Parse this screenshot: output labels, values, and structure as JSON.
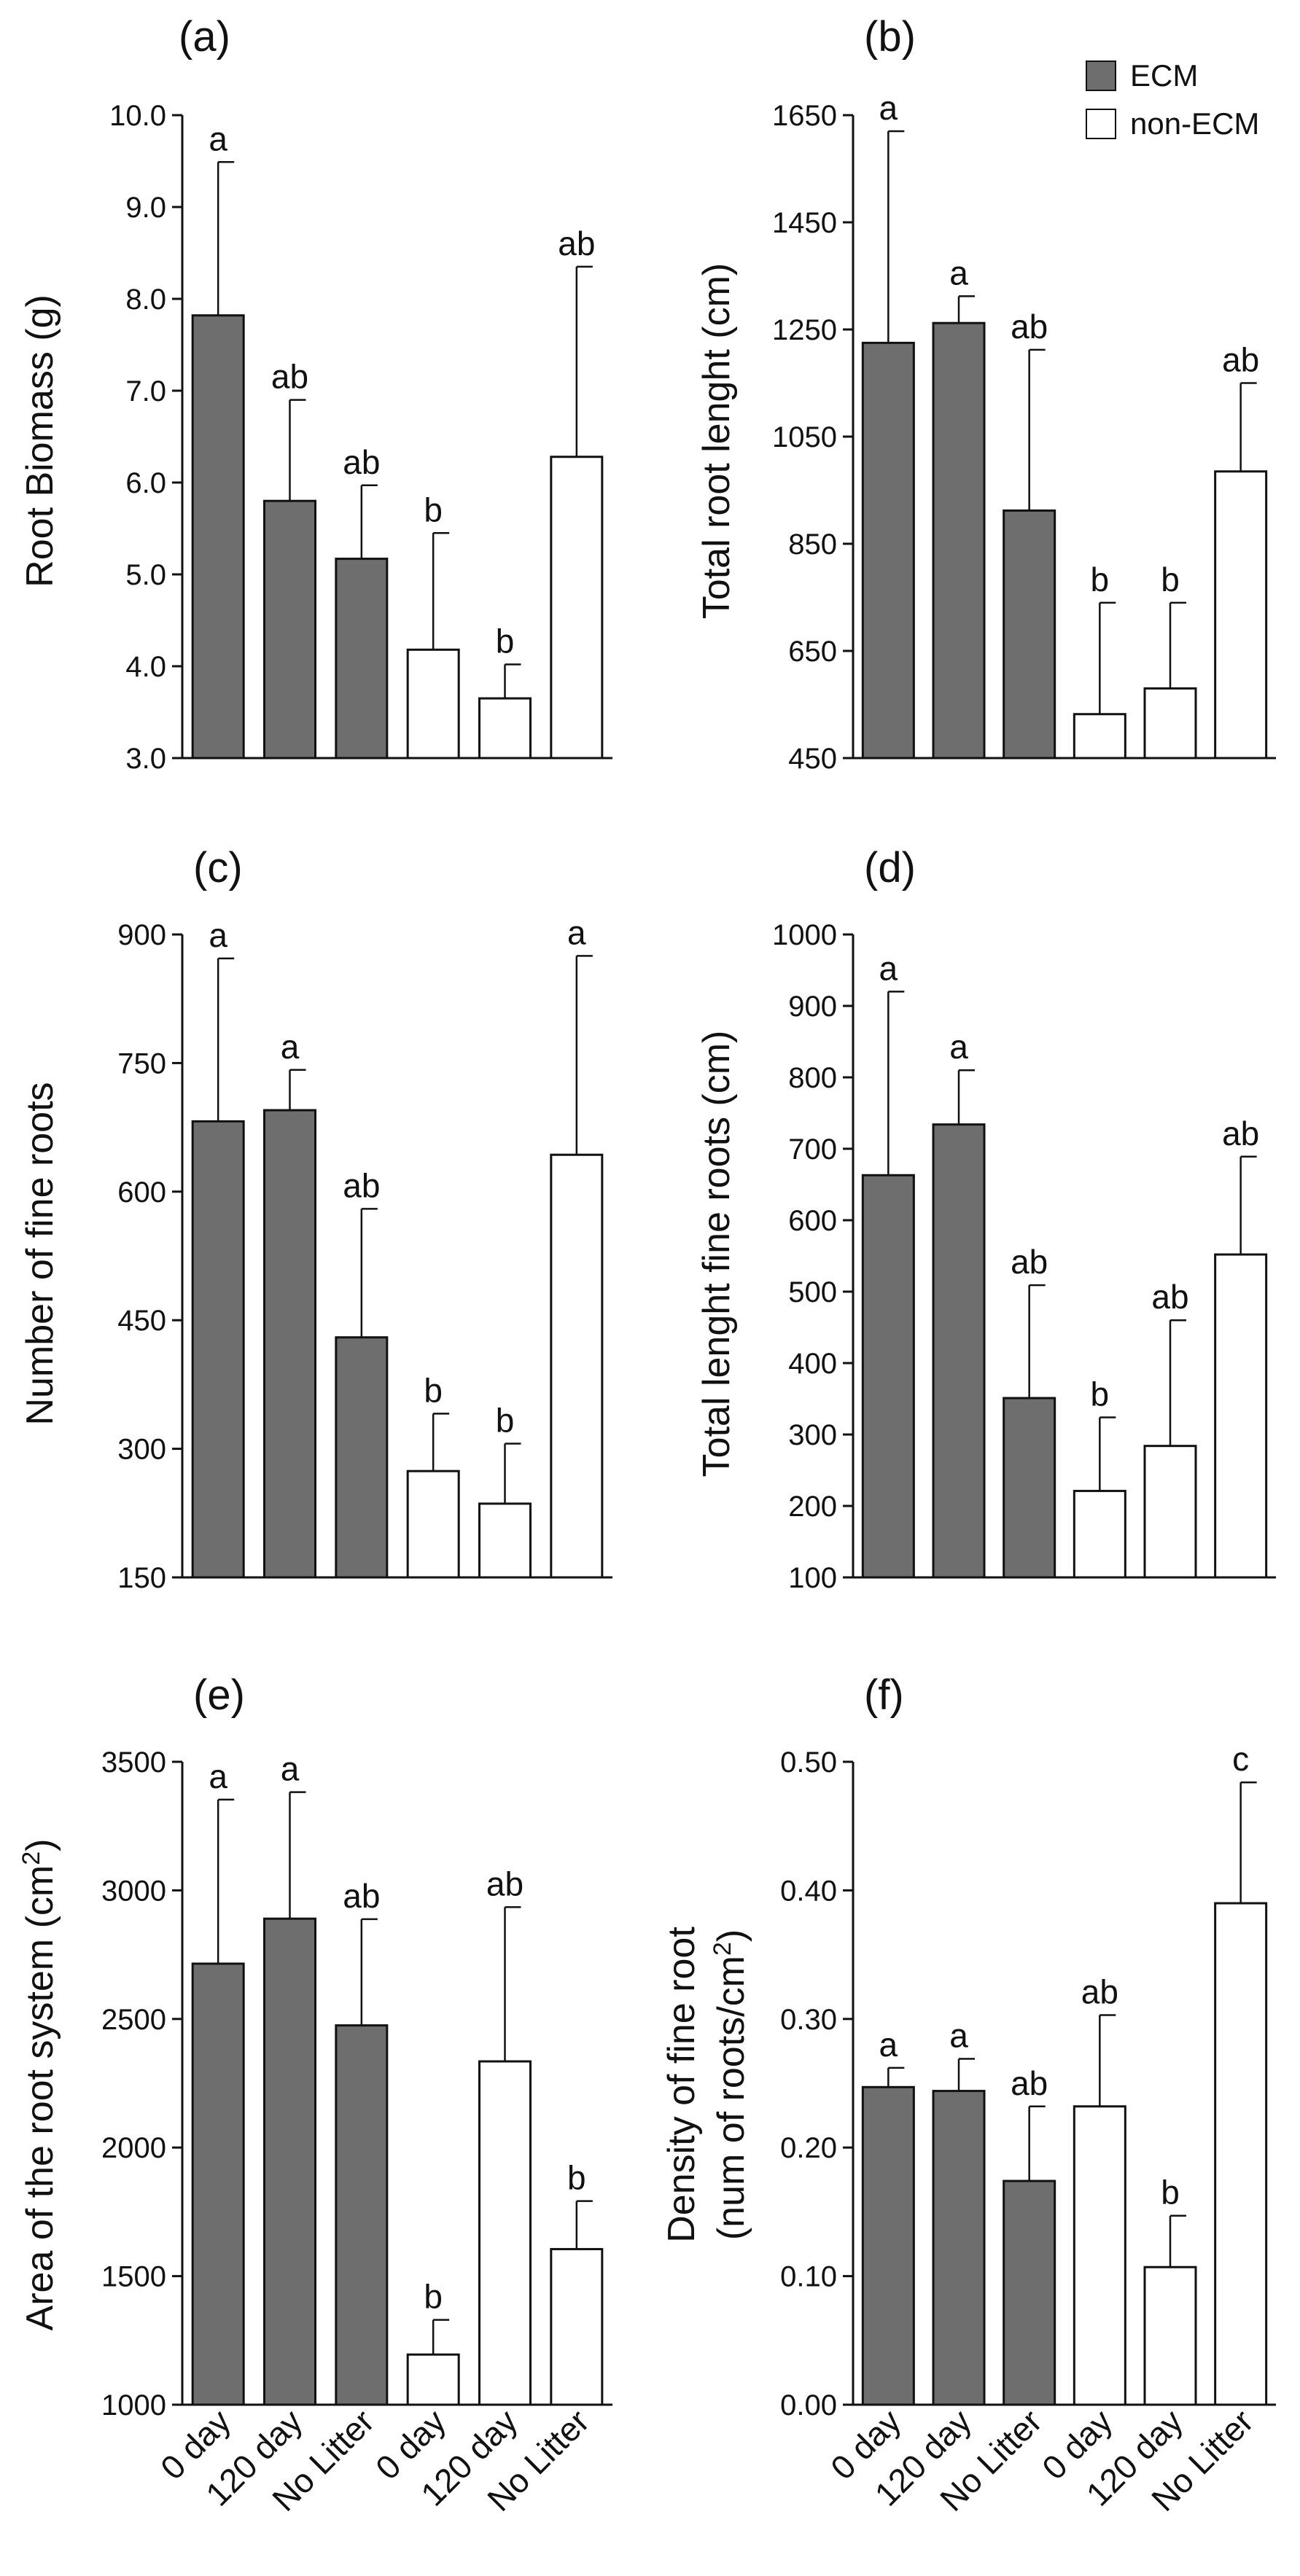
{
  "colors": {
    "ECM": "#6e6e6e",
    "non-ECM": "#ffffff",
    "axis": "#111111"
  },
  "legend": {
    "placement": "top-right",
    "items": [
      {
        "name": "ECM",
        "color": "#6e6e6e"
      },
      {
        "name": "non-ECM",
        "color": "#ffffff"
      }
    ]
  },
  "chart_data": [
    {
      "panel": "(a)",
      "type": "bar",
      "categories": [
        "0 day",
        "120 day",
        "No Litter",
        "0 day",
        "120 day",
        "No Litter"
      ],
      "groups": [
        "ECM",
        "ECM",
        "ECM",
        "non-ECM",
        "non-ECM",
        "non-ECM"
      ],
      "values": [
        7.82,
        5.8,
        5.17,
        4.18,
        3.65,
        6.28
      ],
      "errors": [
        1.67,
        1.1,
        0.8,
        1.27,
        0.37,
        2.07
      ],
      "letters": [
        "a",
        "ab",
        "ab",
        "b",
        "b",
        "ab"
      ],
      "ylabel": "Root Biomass (g)",
      "ylim": [
        3.0,
        10.0
      ],
      "yticks": [
        "3.0",
        "4.0",
        "5.0",
        "6.0",
        "7.0",
        "8.0",
        "9.0",
        "10.0"
      ]
    },
    {
      "panel": "(b)",
      "type": "bar",
      "categories": [
        "0 day",
        "120 day",
        "No Litter",
        "0 day",
        "120 day",
        "No Litter"
      ],
      "groups": [
        "ECM",
        "ECM",
        "ECM",
        "non-ECM",
        "non-ECM",
        "non-ECM"
      ],
      "values": [
        1225,
        1262,
        912,
        532,
        580,
        985
      ],
      "errors": [
        395,
        50,
        300,
        208,
        160,
        165
      ],
      "letters": [
        "a",
        "a",
        "ab",
        "b",
        "b",
        "ab"
      ],
      "ylabel": "Total root lenght (cm)",
      "ylim": [
        450,
        1650
      ],
      "yticks": [
        "450",
        "650",
        "850",
        "1050",
        "1250",
        "1450",
        "1650"
      ]
    },
    {
      "panel": "(c)",
      "type": "bar",
      "categories": [
        "0 day",
        "120 day",
        "No Litter",
        "0 day",
        "120 day",
        "No Litter"
      ],
      "groups": [
        "ECM",
        "ECM",
        "ECM",
        "non-ECM",
        "non-ECM",
        "non-ECM"
      ],
      "values": [
        682,
        695,
        430,
        274,
        236,
        643
      ],
      "errors": [
        190,
        47,
        150,
        67,
        70,
        232
      ],
      "letters": [
        "a",
        "a",
        "ab",
        "b",
        "b",
        "a"
      ],
      "ylabel": "Number of fine roots",
      "ylim": [
        150,
        900
      ],
      "yticks": [
        "150",
        "300",
        "450",
        "600",
        "750",
        "900"
      ]
    },
    {
      "panel": "(d)",
      "type": "bar",
      "categories": [
        "0 day",
        "120 day",
        "No Litter",
        "0 day",
        "120 day",
        "No Litter"
      ],
      "groups": [
        "ECM",
        "ECM",
        "ECM",
        "non-ECM",
        "non-ECM",
        "non-ECM"
      ],
      "values": [
        663,
        734,
        351,
        221,
        284,
        552
      ],
      "errors": [
        257,
        76,
        158,
        103,
        176,
        137
      ],
      "letters": [
        "a",
        "a",
        "ab",
        "b",
        "ab",
        "ab"
      ],
      "ylabel": "Total lenght  fine roots (cm)",
      "ylim": [
        100,
        1000
      ],
      "yticks": [
        "100",
        "200",
        "300",
        "400",
        "500",
        "600",
        "700",
        "800",
        "900",
        "1000"
      ]
    },
    {
      "panel": "(e)",
      "type": "bar",
      "categories": [
        "0 day",
        "120 day",
        "No Litter",
        "0 day",
        "120 day",
        "No Litter"
      ],
      "groups": [
        "ECM",
        "ECM",
        "ECM",
        "non-ECM",
        "non-ECM",
        "non-ECM"
      ],
      "values": [
        2715,
        2890,
        2475,
        1195,
        2335,
        1605
      ],
      "errors": [
        638,
        492,
        413,
        135,
        600,
        187
      ],
      "letters": [
        "a",
        "a",
        "ab",
        "b",
        "ab",
        "b"
      ],
      "ylabel": "Area of the root system (cm2)",
      "ylim": [
        1000,
        3500
      ],
      "yticks": [
        "1000",
        "1500",
        "2000",
        "2500",
        "3000",
        "3500"
      ]
    },
    {
      "panel": "(f)",
      "type": "bar",
      "categories": [
        "0 day",
        "120 day",
        "No Litter",
        "0 day",
        "120 day",
        "No Litter"
      ],
      "groups": [
        "ECM",
        "ECM",
        "ECM",
        "non-ECM",
        "non-ECM",
        "non-ECM"
      ],
      "values": [
        0.247,
        0.244,
        0.174,
        0.232,
        0.107,
        0.39
      ],
      "errors": [
        0.015,
        0.025,
        0.058,
        0.071,
        0.04,
        0.094
      ],
      "letters": [
        "a",
        "a",
        "ab",
        "ab",
        "b",
        "c"
      ],
      "ylabel": "Density of fine root (num of roots/cm2)",
      "ylim": [
        0.0,
        0.5
      ],
      "yticks": [
        "0.00",
        "0.10",
        "0.20",
        "0.30",
        "0.40",
        "0.50"
      ]
    }
  ]
}
